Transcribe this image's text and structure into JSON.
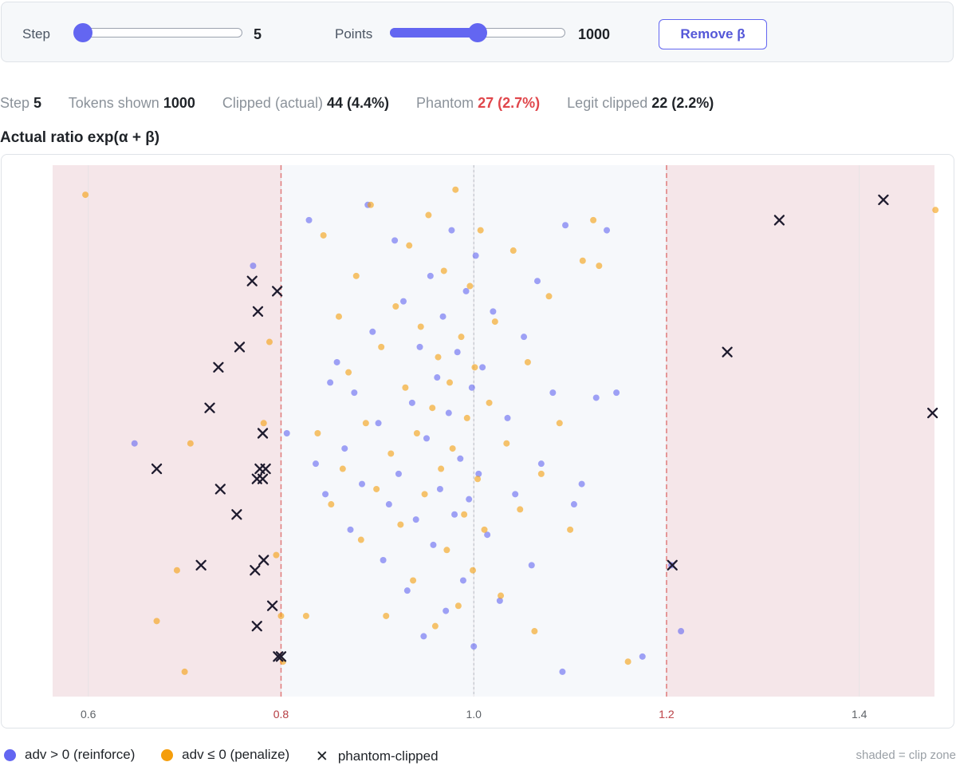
{
  "controls": {
    "step_label": "Step",
    "step_value": "5",
    "step_fraction": 0.05,
    "points_label": "Points",
    "points_value": "1000",
    "points_fraction": 0.5,
    "remove_button": "Remove β"
  },
  "stats": {
    "step_key": "Step",
    "step_val": "5",
    "tokens_key": "Tokens shown",
    "tokens_val": "1000",
    "clipped_key": "Clipped (actual)",
    "clipped_val": "44 (4.4%)",
    "phantom_key": "Phantom",
    "phantom_val": "27 (2.7%)",
    "legit_key": "Legit clipped",
    "legit_val": "22 (2.2%)"
  },
  "chart_title": "Actual ratio exp(α + β)",
  "legend": {
    "reinforce": "adv > 0 (reinforce)",
    "penalize": "adv ≤ 0 (penalize)",
    "phantom": "phantom-clipped",
    "note": "shaded = clip zone"
  },
  "colors": {
    "reinforce": "#6366f1",
    "penalize": "#f59e0b",
    "phantom": "#1e1b2e",
    "clip_zone": "#f5e6e9",
    "keep_zone": "#f6f8fb",
    "clip_line": "#e07b7b"
  },
  "chart_data": {
    "type": "scatter",
    "title": "Actual ratio exp(α + β)",
    "x_range": [
      0.563,
      1.478
    ],
    "x_ticks": [
      "0.6",
      "0.8",
      "1.0",
      "1.2",
      "1.4"
    ],
    "x_tick_values": [
      0.6,
      0.8,
      1.0,
      1.2,
      1.4
    ],
    "clip_low": 0.8,
    "clip_high": 1.2,
    "clip_low_label": "0.8",
    "clip_high_label": "1.2",
    "reference_line": 1.0,
    "y_meaning": "random jitter (no axis)",
    "series": [
      {
        "name": "adv > 0 (reinforce)",
        "points": [
          [
            0.648,
            0.52
          ],
          [
            0.771,
            0.17
          ],
          [
            0.806,
            0.5
          ],
          [
            0.829,
            0.08
          ],
          [
            0.836,
            0.56
          ],
          [
            0.846,
            0.62
          ],
          [
            0.851,
            0.4
          ],
          [
            0.858,
            0.36
          ],
          [
            0.866,
            0.53
          ],
          [
            0.872,
            0.69
          ],
          [
            0.876,
            0.42
          ],
          [
            0.884,
            0.6
          ],
          [
            0.89,
            0.05
          ],
          [
            0.895,
            0.3
          ],
          [
            0.901,
            0.48
          ],
          [
            0.906,
            0.75
          ],
          [
            0.912,
            0.64
          ],
          [
            0.918,
            0.12
          ],
          [
            0.922,
            0.58
          ],
          [
            0.927,
            0.24
          ],
          [
            0.931,
            0.81
          ],
          [
            0.936,
            0.44
          ],
          [
            0.94,
            0.67
          ],
          [
            0.944,
            0.33
          ],
          [
            0.948,
            0.9
          ],
          [
            0.951,
            0.51
          ],
          [
            0.955,
            0.19
          ],
          [
            0.958,
            0.72
          ],
          [
            0.962,
            0.39
          ],
          [
            0.965,
            0.61
          ],
          [
            0.968,
            0.27
          ],
          [
            0.971,
            0.85
          ],
          [
            0.974,
            0.46
          ],
          [
            0.977,
            0.1
          ],
          [
            0.98,
            0.66
          ],
          [
            0.983,
            0.34
          ],
          [
            0.986,
            0.55
          ],
          [
            0.989,
            0.79
          ],
          [
            0.992,
            0.22
          ],
          [
            0.995,
            0.63
          ],
          [
            0.998,
            0.41
          ],
          [
            1.0,
            0.92
          ],
          [
            1.002,
            0.15
          ],
          [
            1.005,
            0.58
          ],
          [
            1.009,
            0.37
          ],
          [
            1.014,
            0.7
          ],
          [
            1.02,
            0.26
          ],
          [
            1.027,
            0.83
          ],
          [
            1.035,
            0.47
          ],
          [
            1.043,
            0.62
          ],
          [
            1.052,
            0.31
          ],
          [
            1.06,
            0.76
          ],
          [
            1.07,
            0.56
          ],
          [
            1.082,
            0.42
          ],
          [
            1.095,
            0.09
          ],
          [
            1.104,
            0.64
          ],
          [
            1.112,
            0.6
          ],
          [
            1.127,
            0.43
          ],
          [
            1.138,
            0.1
          ],
          [
            1.148,
            0.42
          ],
          [
            1.175,
            0.94
          ],
          [
            1.215,
            0.89
          ],
          [
            1.205,
            0.76
          ],
          [
            1.092,
            0.97
          ],
          [
            1.066,
            0.2
          ]
        ]
      },
      {
        "name": "adv ≤ 0 (penalize)",
        "points": [
          [
            0.597,
            0.03
          ],
          [
            0.671,
            0.87
          ],
          [
            0.692,
            0.77
          ],
          [
            0.706,
            0.52
          ],
          [
            0.7,
            0.97
          ],
          [
            0.782,
            0.48
          ],
          [
            0.788,
            0.32
          ],
          [
            0.795,
            0.74
          ],
          [
            0.8,
            0.86
          ],
          [
            0.802,
            0.95
          ],
          [
            0.826,
            0.86
          ],
          [
            0.838,
            0.5
          ],
          [
            0.844,
            0.11
          ],
          [
            0.852,
            0.64
          ],
          [
            0.86,
            0.27
          ],
          [
            0.864,
            0.57
          ],
          [
            0.87,
            0.38
          ],
          [
            0.878,
            0.19
          ],
          [
            0.883,
            0.71
          ],
          [
            0.888,
            0.48
          ],
          [
            0.893,
            0.05
          ],
          [
            0.899,
            0.61
          ],
          [
            0.904,
            0.33
          ],
          [
            0.909,
            0.86
          ],
          [
            0.914,
            0.54
          ],
          [
            0.919,
            0.25
          ],
          [
            0.924,
            0.68
          ],
          [
            0.929,
            0.41
          ],
          [
            0.933,
            0.13
          ],
          [
            0.937,
            0.79
          ],
          [
            0.941,
            0.5
          ],
          [
            0.945,
            0.29
          ],
          [
            0.949,
            0.62
          ],
          [
            0.953,
            0.07
          ],
          [
            0.957,
            0.45
          ],
          [
            0.96,
            0.88
          ],
          [
            0.963,
            0.35
          ],
          [
            0.966,
            0.57
          ],
          [
            0.969,
            0.18
          ],
          [
            0.972,
            0.73
          ],
          [
            0.975,
            0.4
          ],
          [
            0.978,
            0.53
          ],
          [
            0.981,
            0.02
          ],
          [
            0.984,
            0.84
          ],
          [
            0.987,
            0.31
          ],
          [
            0.99,
            0.66
          ],
          [
            0.993,
            0.47
          ],
          [
            0.996,
            0.21
          ],
          [
            0.999,
            0.77
          ],
          [
            1.001,
            0.37
          ],
          [
            1.004,
            0.59
          ],
          [
            1.007,
            0.1
          ],
          [
            1.011,
            0.69
          ],
          [
            1.016,
            0.44
          ],
          [
            1.022,
            0.28
          ],
          [
            1.028,
            0.82
          ],
          [
            1.034,
            0.52
          ],
          [
            1.041,
            0.14
          ],
          [
            1.048,
            0.65
          ],
          [
            1.056,
            0.36
          ],
          [
            1.063,
            0.89
          ],
          [
            1.07,
            0.58
          ],
          [
            1.078,
            0.23
          ],
          [
            1.089,
            0.48
          ],
          [
            1.1,
            0.69
          ],
          [
            1.113,
            0.16
          ],
          [
            1.124,
            0.08
          ],
          [
            1.13,
            0.17
          ],
          [
            1.16,
            0.95
          ],
          [
            1.479,
            0.06
          ]
        ]
      },
      {
        "name": "phantom-clipped",
        "points": [
          [
            0.671,
            0.57
          ],
          [
            0.717,
            0.76
          ],
          [
            0.726,
            0.45
          ],
          [
            0.735,
            0.37
          ],
          [
            0.737,
            0.61
          ],
          [
            0.754,
            0.66
          ],
          [
            0.757,
            0.33
          ],
          [
            0.77,
            0.2
          ],
          [
            0.773,
            0.77
          ],
          [
            0.775,
            0.59
          ],
          [
            0.775,
            0.88
          ],
          [
            0.776,
            0.26
          ],
          [
            0.778,
            0.57
          ],
          [
            0.781,
            0.5
          ],
          [
            0.781,
            0.59
          ],
          [
            0.782,
            0.75
          ],
          [
            0.784,
            0.57
          ],
          [
            0.791,
            0.84
          ],
          [
            0.796,
            0.22
          ],
          [
            0.797,
            0.94
          ],
          [
            0.8,
            0.94
          ],
          [
            1.206,
            0.76
          ],
          [
            1.263,
            0.34
          ],
          [
            1.317,
            0.08
          ],
          [
            1.425,
            0.04
          ],
          [
            1.476,
            0.46
          ]
        ]
      }
    ]
  }
}
